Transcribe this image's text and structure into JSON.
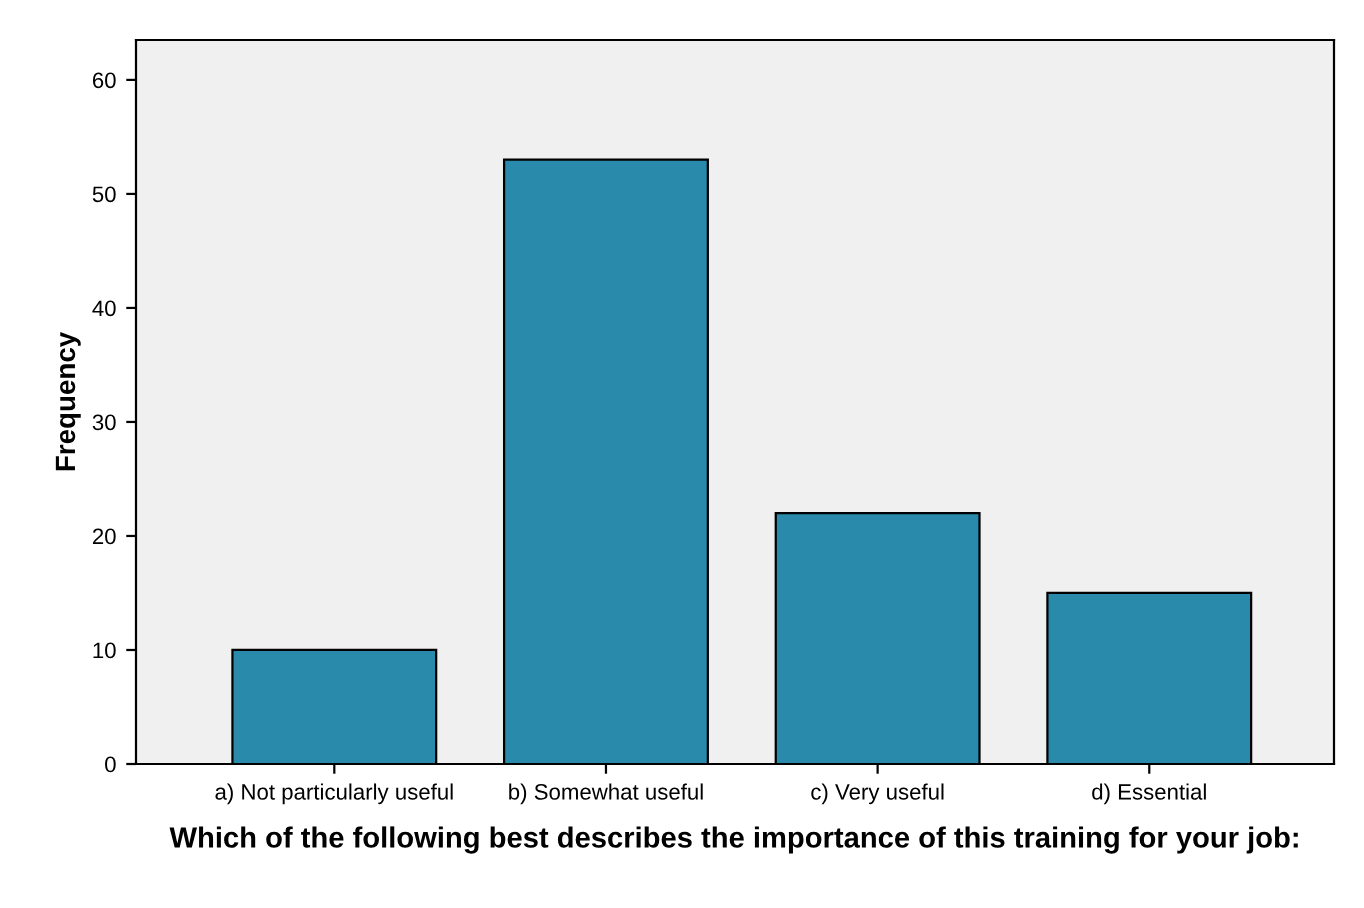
{
  "chart_data": {
    "type": "bar",
    "xlabel": "Which of the following best describes the importance of this training for your job:",
    "ylabel": "Frequency",
    "categories": [
      "a) Not particularly useful",
      "b) Somewhat useful",
      "c) Very useful",
      "d) Essential"
    ],
    "values": [
      10,
      53,
      22,
      15
    ],
    "color": "#2a8aab",
    "ylim": [
      0,
      63.5
    ],
    "yticks": [
      0,
      10,
      20,
      30,
      40,
      50,
      60
    ],
    "grid": false
  }
}
